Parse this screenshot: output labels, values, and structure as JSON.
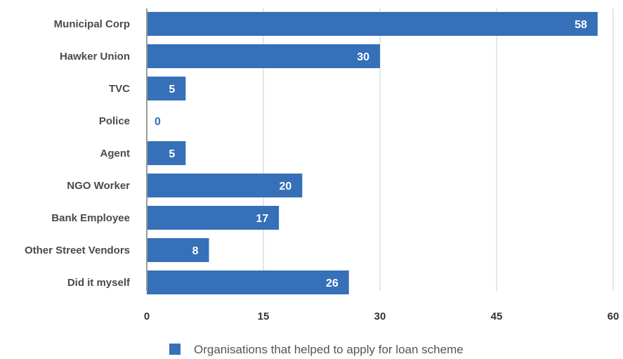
{
  "chart_data": {
    "type": "bar",
    "orientation": "horizontal",
    "categories": [
      "Municipal Corp",
      "Hawker Union",
      "TVC",
      "Police",
      "Agent",
      "NGO Worker",
      "Bank Employee",
      "Other Street Vendors",
      "Did it myself"
    ],
    "series": [
      {
        "name": "Organisations that helped to apply for loan scheme",
        "values": [
          58,
          30,
          5,
          0,
          5,
          20,
          17,
          8,
          26
        ]
      }
    ],
    "xlim": [
      0,
      60
    ],
    "xticks": [
      "0",
      "15",
      "30",
      "45",
      "60"
    ],
    "grid": "vertical",
    "legend": "bottom-center",
    "data_labels": true,
    "title": "",
    "xlabel": "",
    "ylabel": "",
    "colors": {
      "bar": "#3570b8",
      "label_inside": "#ffffff",
      "label_outside": "#3570b8",
      "grid": "#cccccc",
      "axis": "#9a9a9a"
    }
  }
}
